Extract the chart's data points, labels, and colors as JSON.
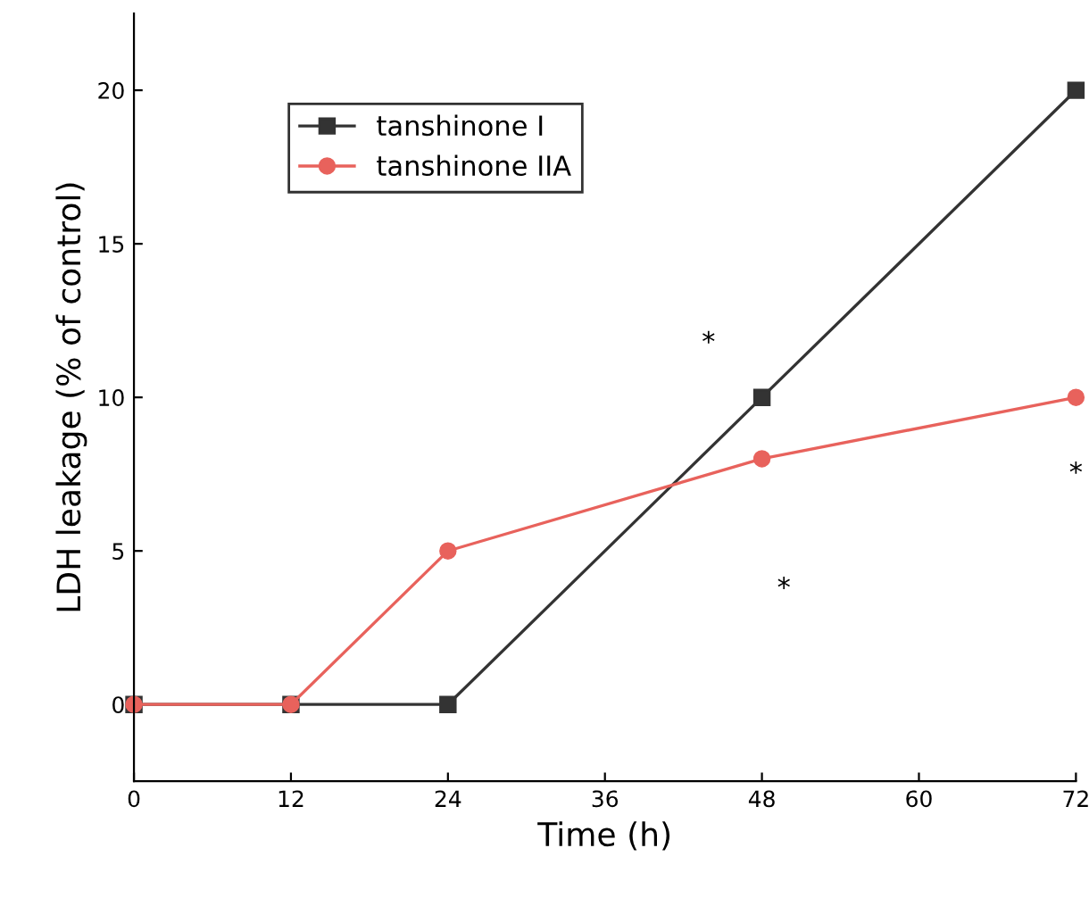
{
  "chart_data": {
    "type": "line",
    "xlabel": "Time (h)",
    "ylabel": "LDH leakage (% of control)",
    "x": [
      0,
      12,
      24,
      48,
      72
    ],
    "series": [
      {
        "name": "tanshinone I",
        "color": "#333333",
        "values": [
          0,
          0,
          0,
          10,
          20
        ],
        "marker": "square"
      },
      {
        "name": "tanshinone IIA",
        "color": "#e8625c",
        "values": [
          0,
          0,
          5,
          8,
          10
        ],
        "marker": "circle"
      }
    ],
    "xlim": [
      0,
      72
    ],
    "xticks": [
      0,
      12,
      24,
      36,
      48,
      60,
      72
    ],
    "ylim": [
      -2.5,
      22.5
    ],
    "yticks": [
      0,
      5,
      10,
      15,
      20
    ],
    "annotations": [
      "*",
      "*",
      "*"
    ],
    "legend": "top left",
    "grid": false
  }
}
